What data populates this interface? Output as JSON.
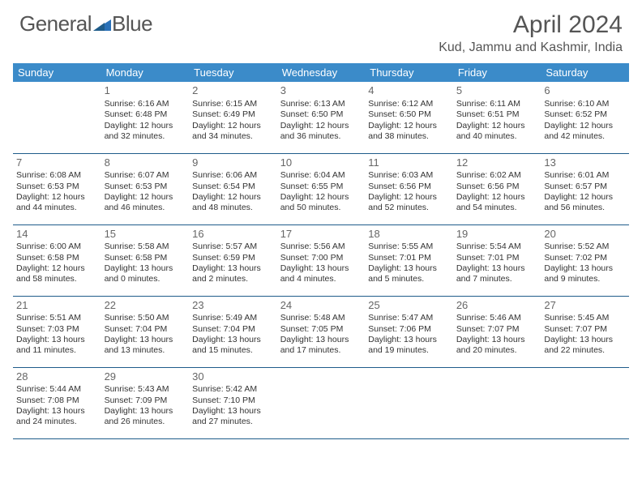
{
  "brand": {
    "part1": "General",
    "part2": "Blue"
  },
  "title": "April 2024",
  "location": "Kud, Jammu and Kashmir, India",
  "colors": {
    "header_bg": "#3b8bc9",
    "header_text": "#ffffff",
    "border": "#1f5c8a",
    "text": "#333333",
    "title": "#555555"
  },
  "weekdays": [
    "Sunday",
    "Monday",
    "Tuesday",
    "Wednesday",
    "Thursday",
    "Friday",
    "Saturday"
  ],
  "weeks": [
    [
      null,
      {
        "n": "1",
        "sr": "Sunrise: 6:16 AM",
        "ss": "Sunset: 6:48 PM",
        "d1": "Daylight: 12 hours",
        "d2": "and 32 minutes."
      },
      {
        "n": "2",
        "sr": "Sunrise: 6:15 AM",
        "ss": "Sunset: 6:49 PM",
        "d1": "Daylight: 12 hours",
        "d2": "and 34 minutes."
      },
      {
        "n": "3",
        "sr": "Sunrise: 6:13 AM",
        "ss": "Sunset: 6:50 PM",
        "d1": "Daylight: 12 hours",
        "d2": "and 36 minutes."
      },
      {
        "n": "4",
        "sr": "Sunrise: 6:12 AM",
        "ss": "Sunset: 6:50 PM",
        "d1": "Daylight: 12 hours",
        "d2": "and 38 minutes."
      },
      {
        "n": "5",
        "sr": "Sunrise: 6:11 AM",
        "ss": "Sunset: 6:51 PM",
        "d1": "Daylight: 12 hours",
        "d2": "and 40 minutes."
      },
      {
        "n": "6",
        "sr": "Sunrise: 6:10 AM",
        "ss": "Sunset: 6:52 PM",
        "d1": "Daylight: 12 hours",
        "d2": "and 42 minutes."
      }
    ],
    [
      {
        "n": "7",
        "sr": "Sunrise: 6:08 AM",
        "ss": "Sunset: 6:53 PM",
        "d1": "Daylight: 12 hours",
        "d2": "and 44 minutes."
      },
      {
        "n": "8",
        "sr": "Sunrise: 6:07 AM",
        "ss": "Sunset: 6:53 PM",
        "d1": "Daylight: 12 hours",
        "d2": "and 46 minutes."
      },
      {
        "n": "9",
        "sr": "Sunrise: 6:06 AM",
        "ss": "Sunset: 6:54 PM",
        "d1": "Daylight: 12 hours",
        "d2": "and 48 minutes."
      },
      {
        "n": "10",
        "sr": "Sunrise: 6:04 AM",
        "ss": "Sunset: 6:55 PM",
        "d1": "Daylight: 12 hours",
        "d2": "and 50 minutes."
      },
      {
        "n": "11",
        "sr": "Sunrise: 6:03 AM",
        "ss": "Sunset: 6:56 PM",
        "d1": "Daylight: 12 hours",
        "d2": "and 52 minutes."
      },
      {
        "n": "12",
        "sr": "Sunrise: 6:02 AM",
        "ss": "Sunset: 6:56 PM",
        "d1": "Daylight: 12 hours",
        "d2": "and 54 minutes."
      },
      {
        "n": "13",
        "sr": "Sunrise: 6:01 AM",
        "ss": "Sunset: 6:57 PM",
        "d1": "Daylight: 12 hours",
        "d2": "and 56 minutes."
      }
    ],
    [
      {
        "n": "14",
        "sr": "Sunrise: 6:00 AM",
        "ss": "Sunset: 6:58 PM",
        "d1": "Daylight: 12 hours",
        "d2": "and 58 minutes."
      },
      {
        "n": "15",
        "sr": "Sunrise: 5:58 AM",
        "ss": "Sunset: 6:58 PM",
        "d1": "Daylight: 13 hours",
        "d2": "and 0 minutes."
      },
      {
        "n": "16",
        "sr": "Sunrise: 5:57 AM",
        "ss": "Sunset: 6:59 PM",
        "d1": "Daylight: 13 hours",
        "d2": "and 2 minutes."
      },
      {
        "n": "17",
        "sr": "Sunrise: 5:56 AM",
        "ss": "Sunset: 7:00 PM",
        "d1": "Daylight: 13 hours",
        "d2": "and 4 minutes."
      },
      {
        "n": "18",
        "sr": "Sunrise: 5:55 AM",
        "ss": "Sunset: 7:01 PM",
        "d1": "Daylight: 13 hours",
        "d2": "and 5 minutes."
      },
      {
        "n": "19",
        "sr": "Sunrise: 5:54 AM",
        "ss": "Sunset: 7:01 PM",
        "d1": "Daylight: 13 hours",
        "d2": "and 7 minutes."
      },
      {
        "n": "20",
        "sr": "Sunrise: 5:52 AM",
        "ss": "Sunset: 7:02 PM",
        "d1": "Daylight: 13 hours",
        "d2": "and 9 minutes."
      }
    ],
    [
      {
        "n": "21",
        "sr": "Sunrise: 5:51 AM",
        "ss": "Sunset: 7:03 PM",
        "d1": "Daylight: 13 hours",
        "d2": "and 11 minutes."
      },
      {
        "n": "22",
        "sr": "Sunrise: 5:50 AM",
        "ss": "Sunset: 7:04 PM",
        "d1": "Daylight: 13 hours",
        "d2": "and 13 minutes."
      },
      {
        "n": "23",
        "sr": "Sunrise: 5:49 AM",
        "ss": "Sunset: 7:04 PM",
        "d1": "Daylight: 13 hours",
        "d2": "and 15 minutes."
      },
      {
        "n": "24",
        "sr": "Sunrise: 5:48 AM",
        "ss": "Sunset: 7:05 PM",
        "d1": "Daylight: 13 hours",
        "d2": "and 17 minutes."
      },
      {
        "n": "25",
        "sr": "Sunrise: 5:47 AM",
        "ss": "Sunset: 7:06 PM",
        "d1": "Daylight: 13 hours",
        "d2": "and 19 minutes."
      },
      {
        "n": "26",
        "sr": "Sunrise: 5:46 AM",
        "ss": "Sunset: 7:07 PM",
        "d1": "Daylight: 13 hours",
        "d2": "and 20 minutes."
      },
      {
        "n": "27",
        "sr": "Sunrise: 5:45 AM",
        "ss": "Sunset: 7:07 PM",
        "d1": "Daylight: 13 hours",
        "d2": "and 22 minutes."
      }
    ],
    [
      {
        "n": "28",
        "sr": "Sunrise: 5:44 AM",
        "ss": "Sunset: 7:08 PM",
        "d1": "Daylight: 13 hours",
        "d2": "and 24 minutes."
      },
      {
        "n": "29",
        "sr": "Sunrise: 5:43 AM",
        "ss": "Sunset: 7:09 PM",
        "d1": "Daylight: 13 hours",
        "d2": "and 26 minutes."
      },
      {
        "n": "30",
        "sr": "Sunrise: 5:42 AM",
        "ss": "Sunset: 7:10 PM",
        "d1": "Daylight: 13 hours",
        "d2": "and 27 minutes."
      },
      null,
      null,
      null,
      null
    ]
  ]
}
